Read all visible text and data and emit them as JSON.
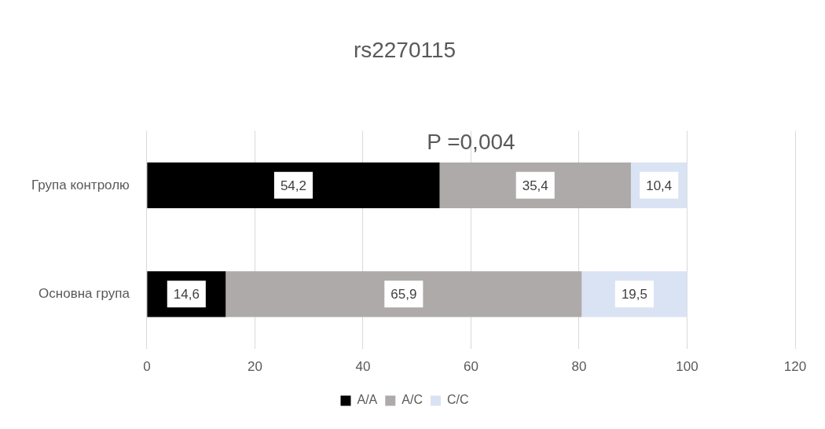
{
  "chart_data": {
    "type": "bar",
    "orientation": "horizontal",
    "stacked": true,
    "title": "rs2270115",
    "annotations": [
      "P =0,004"
    ],
    "categories": [
      "Група контролю",
      "Основна група"
    ],
    "series": [
      {
        "name": "A/A",
        "color": "#000000",
        "values": [
          54.2,
          14.6
        ],
        "value_labels": [
          "54,2",
          "14,6"
        ]
      },
      {
        "name": "A/C",
        "color": "#aeaaaa",
        "values": [
          35.4,
          65.9
        ],
        "value_labels": [
          "35,4",
          "65,9"
        ]
      },
      {
        "name": "C/C",
        "color": "#dae3f3",
        "values": [
          10.4,
          19.5
        ],
        "value_labels": [
          "10,4",
          "19,5"
        ]
      }
    ],
    "xlim": [
      0,
      120
    ],
    "xticks": [
      0,
      20,
      40,
      60,
      80,
      100,
      120
    ],
    "grid": "x",
    "legend": "bottom"
  }
}
